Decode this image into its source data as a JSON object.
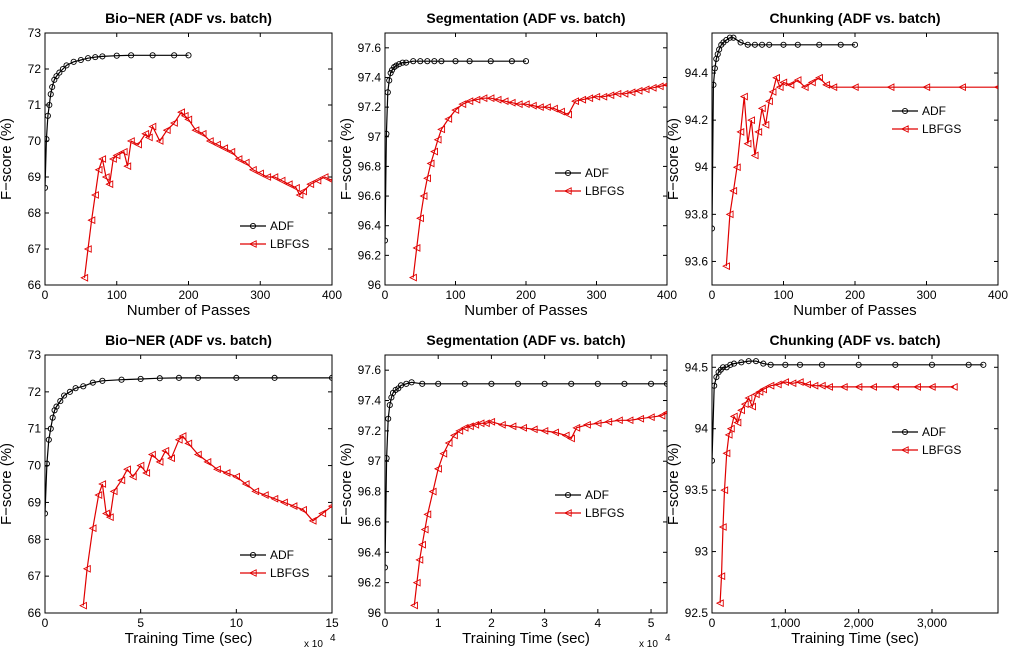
{
  "colors": {
    "adf": "#000000",
    "lbfgs": "#e00000"
  },
  "icons": {
    "adf_marker": "circle",
    "lbfgs_marker": "left-triangle"
  },
  "chart_data": [
    {
      "type": "line",
      "title": "Bio−NER (ADF vs. batch)",
      "xlabel": "Number of Passes",
      "ylabel": "F−score (%)",
      "xlim": [
        0,
        400
      ],
      "ylim": [
        66,
        73
      ],
      "xticks": [
        "0",
        "100",
        "200",
        "300",
        "400"
      ],
      "yticks": [
        "66",
        "67",
        "68",
        "69",
        "70",
        "71",
        "72",
        "73"
      ],
      "x_exponent": "",
      "legend_position": "lower-right",
      "grid": false,
      "series": [
        {
          "name": "ADF",
          "marker": "circle",
          "x": [
            0,
            2,
            4,
            6,
            8,
            10,
            13,
            16,
            20,
            25,
            30,
            40,
            50,
            60,
            70,
            80,
            100,
            120,
            150,
            180,
            200
          ],
          "y": [
            68.7,
            70.05,
            70.7,
            71.0,
            71.3,
            71.5,
            71.7,
            71.8,
            71.9,
            72.0,
            72.1,
            72.2,
            72.25,
            72.3,
            72.33,
            72.35,
            72.37,
            72.38,
            72.38,
            72.38,
            72.38
          ]
        },
        {
          "name": "LBFGS",
          "marker": "left-triangle",
          "x": [
            55,
            60,
            65,
            70,
            75,
            80,
            85,
            90,
            95,
            100,
            110,
            115,
            120,
            130,
            140,
            145,
            150,
            160,
            170,
            180,
            190,
            195,
            200,
            210,
            220,
            230,
            240,
            250,
            260,
            270,
            280,
            290,
            300,
            310,
            320,
            330,
            340,
            350,
            355,
            360,
            370,
            380,
            390,
            400
          ],
          "y": [
            66.2,
            67.0,
            67.8,
            68.5,
            69.2,
            69.5,
            69.0,
            68.8,
            69.5,
            69.6,
            69.7,
            69.3,
            70.0,
            69.9,
            70.2,
            70.1,
            70.4,
            70.0,
            70.3,
            70.5,
            70.8,
            70.7,
            70.6,
            70.3,
            70.2,
            70.0,
            69.9,
            69.8,
            69.7,
            69.5,
            69.4,
            69.2,
            69.1,
            69.0,
            69.0,
            68.9,
            68.8,
            68.7,
            68.5,
            68.6,
            68.8,
            68.9,
            69.0,
            68.9
          ]
        }
      ]
    },
    {
      "type": "line",
      "title": "Segmentation (ADF vs. batch)",
      "xlabel": "Number of Passes",
      "ylabel": "F−score  (%)",
      "xlim": [
        0,
        400
      ],
      "ylim": [
        96,
        97.7
      ],
      "xticks": [
        "0",
        "100",
        "200",
        "300",
        "400"
      ],
      "yticks": [
        "96",
        "96.2",
        "96.4",
        "96.6",
        "96.8",
        "97",
        "97.2",
        "97.4",
        "97.6"
      ],
      "x_exponent": "",
      "legend_position": "center-right",
      "grid": false,
      "series": [
        {
          "name": "ADF",
          "marker": "circle",
          "x": [
            0,
            2,
            4,
            6,
            8,
            10,
            13,
            16,
            20,
            25,
            30,
            40,
            50,
            60,
            70,
            80,
            100,
            120,
            150,
            180,
            200
          ],
          "y": [
            96.3,
            97.02,
            97.3,
            97.38,
            97.43,
            97.45,
            97.47,
            97.48,
            97.49,
            97.5,
            97.5,
            97.51,
            97.51,
            97.51,
            97.51,
            97.51,
            97.51,
            97.51,
            97.51,
            97.51,
            97.51
          ]
        },
        {
          "name": "LBFGS",
          "marker": "left-triangle",
          "x": [
            40,
            45,
            50,
            55,
            60,
            65,
            70,
            75,
            80,
            90,
            100,
            110,
            120,
            130,
            140,
            150,
            160,
            170,
            180,
            190,
            200,
            210,
            220,
            230,
            240,
            250,
            260,
            270,
            280,
            290,
            300,
            310,
            320,
            330,
            340,
            350,
            360,
            370,
            380,
            390,
            400
          ],
          "y": [
            96.05,
            96.25,
            96.45,
            96.6,
            96.72,
            96.82,
            96.9,
            96.98,
            97.05,
            97.12,
            97.18,
            97.22,
            97.24,
            97.25,
            97.26,
            97.26,
            97.25,
            97.24,
            97.23,
            97.22,
            97.22,
            97.21,
            97.2,
            97.2,
            97.19,
            97.17,
            97.15,
            97.24,
            97.25,
            97.26,
            97.27,
            97.27,
            97.28,
            97.29,
            97.29,
            97.3,
            97.31,
            97.32,
            97.33,
            97.34,
            97.35
          ]
        }
      ]
    },
    {
      "type": "line",
      "title": "Chunking (ADF vs. batch)",
      "xlabel": "Number of Passes",
      "ylabel": "F−score (%)",
      "xlim": [
        0,
        400
      ],
      "ylim": [
        93.5,
        94.57
      ],
      "xticks": [
        "0",
        "100",
        "200",
        "300",
        "400"
      ],
      "yticks": [
        "93.6",
        "93.8",
        "94",
        "94.2",
        "94.4"
      ],
      "x_exponent": "",
      "legend_position": "upper-right",
      "grid": false,
      "series": [
        {
          "name": "ADF",
          "marker": "circle",
          "x": [
            0,
            2,
            4,
            6,
            8,
            10,
            13,
            16,
            20,
            25,
            30,
            40,
            50,
            60,
            70,
            80,
            100,
            120,
            150,
            180,
            200
          ],
          "y": [
            93.74,
            94.35,
            94.42,
            94.46,
            94.48,
            94.5,
            94.52,
            94.53,
            94.54,
            94.55,
            94.55,
            94.53,
            94.52,
            94.52,
            94.52,
            94.52,
            94.52,
            94.52,
            94.52,
            94.52,
            94.52
          ]
        },
        {
          "name": "LBFGS",
          "marker": "left-triangle",
          "x": [
            20,
            25,
            30,
            35,
            40,
            45,
            50,
            55,
            60,
            65,
            70,
            75,
            80,
            85,
            90,
            95,
            100,
            110,
            120,
            130,
            140,
            150,
            160,
            170,
            200,
            250,
            300,
            350,
            400
          ],
          "y": [
            93.58,
            93.8,
            93.9,
            94.0,
            94.15,
            94.3,
            94.1,
            94.2,
            94.05,
            94.15,
            94.25,
            94.18,
            94.28,
            94.32,
            94.38,
            94.34,
            94.36,
            94.35,
            94.37,
            94.34,
            94.36,
            94.38,
            94.35,
            94.34,
            94.34,
            94.34,
            94.34,
            94.34,
            94.34
          ]
        }
      ]
    },
    {
      "type": "line",
      "title": "Bio−NER (ADF vs. batch)",
      "xlabel": "Training Time (sec)",
      "ylabel": "F−score (%)",
      "xlim": [
        0,
        150000
      ],
      "ylim": [
        66,
        73
      ],
      "xticks": [
        "0",
        "5",
        "10",
        "15"
      ],
      "yticks": [
        "66",
        "67",
        "68",
        "69",
        "70",
        "71",
        "72",
        "73"
      ],
      "x_exponent": "x 10",
      "x_exponent_power": "4",
      "legend_position": "lower-right",
      "grid": false,
      "series": [
        {
          "name": "ADF",
          "marker": "circle",
          "x": [
            0,
            1000,
            2000,
            3000,
            4000,
            5000,
            6000,
            8000,
            10000,
            13000,
            16000,
            20000,
            25000,
            30000,
            40000,
            50000,
            60000,
            70000,
            80000,
            100000,
            120000,
            150000
          ],
          "y": [
            68.7,
            70.05,
            70.7,
            71.0,
            71.3,
            71.5,
            71.6,
            71.75,
            71.9,
            72.0,
            72.1,
            72.15,
            72.25,
            72.3,
            72.33,
            72.35,
            72.37,
            72.38,
            72.38,
            72.38,
            72.38,
            72.38
          ]
        },
        {
          "name": "LBFGS",
          "marker": "left-triangle",
          "x": [
            20000,
            22000,
            25000,
            28000,
            30000,
            32000,
            34000,
            36000,
            40000,
            43000,
            46000,
            50000,
            53000,
            56000,
            60000,
            63000,
            66000,
            70000,
            72000,
            75000,
            80000,
            85000,
            90000,
            95000,
            100000,
            105000,
            110000,
            115000,
            120000,
            125000,
            130000,
            135000,
            140000,
            145000,
            150000
          ],
          "y": [
            66.2,
            67.2,
            68.3,
            69.2,
            69.5,
            68.7,
            68.6,
            69.3,
            69.6,
            69.9,
            69.7,
            70.0,
            69.8,
            70.3,
            70.1,
            70.4,
            70.2,
            70.7,
            70.8,
            70.6,
            70.3,
            70.1,
            69.9,
            69.8,
            69.7,
            69.5,
            69.3,
            69.2,
            69.1,
            69.0,
            68.9,
            68.8,
            68.5,
            68.7,
            68.9
          ]
        }
      ]
    },
    {
      "type": "line",
      "title": "Segmentation (ADF vs. batch)",
      "xlabel": "Training Time (sec)",
      "ylabel": "F−score  (%)",
      "xlim": [
        0,
        53000
      ],
      "ylim": [
        96,
        97.7
      ],
      "xticks": [
        "0",
        "1",
        "2",
        "3",
        "4",
        "5"
      ],
      "yticks": [
        "96",
        "96.2",
        "96.4",
        "96.6",
        "96.8",
        "97",
        "97.2",
        "97.4",
        "97.6"
      ],
      "x_exponent": "x 10",
      "x_exponent_power": "4",
      "legend_position": "center-right",
      "grid": false,
      "series": [
        {
          "name": "ADF",
          "marker": "circle",
          "x": [
            0,
            300,
            600,
            900,
            1200,
            1500,
            2000,
            2500,
            3000,
            4000,
            5000,
            7000,
            10000,
            15000,
            20000,
            25000,
            30000,
            35000,
            40000,
            45000,
            50000,
            53000
          ],
          "y": [
            96.3,
            97.02,
            97.28,
            97.37,
            97.42,
            97.45,
            97.47,
            97.48,
            97.5,
            97.51,
            97.52,
            97.51,
            97.51,
            97.51,
            97.51,
            97.51,
            97.51,
            97.51,
            97.51,
            97.51,
            97.51,
            97.51
          ]
        },
        {
          "name": "LBFGS",
          "marker": "left-triangle",
          "x": [
            5500,
            6000,
            6500,
            7000,
            7500,
            8000,
            9000,
            10000,
            11000,
            12000,
            13000,
            14000,
            15000,
            16000,
            17000,
            18000,
            19000,
            20000,
            22000,
            24000,
            26000,
            28000,
            30000,
            32000,
            34000,
            35000,
            36000,
            38000,
            40000,
            42000,
            44000,
            46000,
            48000,
            50000,
            52000,
            53000
          ],
          "y": [
            96.05,
            96.2,
            96.35,
            96.45,
            96.55,
            96.65,
            96.8,
            96.95,
            97.05,
            97.12,
            97.17,
            97.2,
            97.22,
            97.23,
            97.24,
            97.25,
            97.25,
            97.26,
            97.24,
            97.23,
            97.22,
            97.21,
            97.2,
            97.19,
            97.17,
            97.15,
            97.22,
            97.24,
            97.25,
            97.26,
            97.27,
            97.27,
            97.28,
            97.29,
            97.3,
            97.32
          ]
        }
      ]
    },
    {
      "type": "line",
      "title": "Chunking (ADF vs. batch)",
      "xlabel": "Training Time (sec)",
      "ylabel": "F−score (%)",
      "xlim": [
        0,
        3900
      ],
      "ylim": [
        92.5,
        94.6
      ],
      "xticks": [
        "0",
        "1,000",
        "2,000",
        "3,000"
      ],
      "xtick_values": [
        0,
        1000,
        2000,
        3000
      ],
      "yticks": [
        "92.5",
        "93",
        "93.5",
        "94",
        "94.5"
      ],
      "x_exponent": "",
      "legend_position": "center-right",
      "grid": false,
      "series": [
        {
          "name": "ADF",
          "marker": "circle",
          "x": [
            0,
            30,
            60,
            90,
            120,
            150,
            200,
            250,
            300,
            400,
            500,
            600,
            700,
            800,
            1000,
            1200,
            1500,
            2000,
            2500,
            3000,
            3500,
            3700
          ],
          "y": [
            93.74,
            94.35,
            94.42,
            94.46,
            94.48,
            94.5,
            94.5,
            94.52,
            94.53,
            94.54,
            94.55,
            94.55,
            94.53,
            94.52,
            94.52,
            94.52,
            94.52,
            94.52,
            94.52,
            94.52,
            94.52,
            94.52
          ]
        },
        {
          "name": "LBFGS",
          "marker": "left-triangle",
          "x": [
            110,
            130,
            150,
            170,
            200,
            230,
            260,
            300,
            350,
            400,
            450,
            500,
            550,
            600,
            650,
            700,
            800,
            900,
            1000,
            1100,
            1200,
            1300,
            1400,
            1500,
            1600,
            1800,
            2000,
            2200,
            2500,
            2800,
            3000,
            3300
          ],
          "y": [
            92.58,
            92.8,
            93.2,
            93.5,
            93.8,
            93.95,
            94.0,
            94.1,
            94.05,
            94.15,
            94.2,
            94.25,
            94.18,
            94.28,
            94.3,
            94.32,
            94.35,
            94.36,
            94.38,
            94.37,
            94.38,
            94.36,
            94.35,
            94.35,
            94.34,
            94.34,
            94.34,
            94.34,
            94.34,
            94.34,
            94.34,
            94.34
          ]
        }
      ]
    }
  ]
}
